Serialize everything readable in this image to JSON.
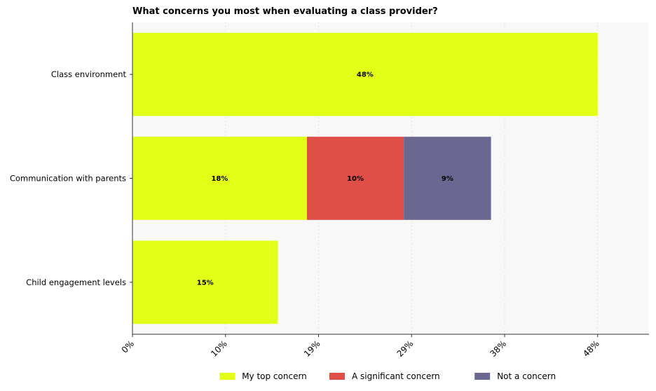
{
  "chart_data": {
    "type": "bar",
    "orientation": "horizontal",
    "stacked": true,
    "title": "What concerns you most when evaluating a class provider?",
    "categories": [
      "Class environment",
      "Communication with parents",
      "Child engagement levels"
    ],
    "series": [
      {
        "name": "My top concern",
        "color": "#e2ff17",
        "values": [
          48,
          18,
          15
        ],
        "labels": [
          "48%",
          "18%",
          "15%"
        ]
      },
      {
        "name": "A significant concern",
        "color": "#e04e48",
        "values": [
          0,
          10,
          0
        ],
        "labels": [
          "",
          "10%",
          ""
        ]
      },
      {
        "name": "Not a concern",
        "color": "#6a6891",
        "values": [
          0,
          9,
          0
        ],
        "labels": [
          "",
          "9%",
          ""
        ]
      }
    ],
    "xticks": [
      0,
      9.6,
      19.2,
      28.8,
      38.4,
      48
    ],
    "xtick_labels": [
      "0%",
      "10%",
      "19%",
      "29%",
      "38%",
      "48%"
    ],
    "xlim": [
      0,
      53.3
    ],
    "grid": "vertical",
    "legend": "bottom"
  }
}
